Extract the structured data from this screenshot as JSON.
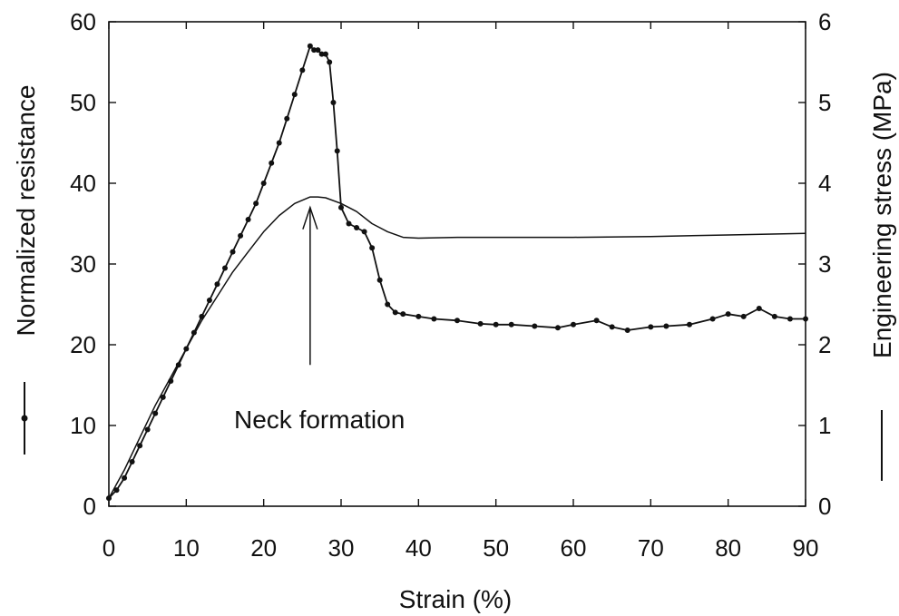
{
  "chart_data": {
    "type": "line",
    "xlabel": "Strain (%)",
    "ylabel_left": "Normalized resistance",
    "ylabel_right": "Engineering stress (MPa)",
    "xlim": [
      0,
      90
    ],
    "ylim_left": [
      0,
      60
    ],
    "ylim_right": [
      0,
      6
    ],
    "x_ticks": [
      "0",
      "10",
      "20",
      "30",
      "40",
      "50",
      "60",
      "70",
      "80",
      "90"
    ],
    "y_left_ticks": [
      "0",
      "10",
      "20",
      "30",
      "40",
      "50",
      "60"
    ],
    "y_right_ticks": [
      "0",
      "1",
      "2",
      "3",
      "4",
      "5",
      "6"
    ],
    "grid": false,
    "annotation": {
      "text": "Neck formation",
      "arrow_from": [
        26,
        17.5
      ],
      "arrow_to": [
        26,
        37
      ]
    },
    "series": [
      {
        "axis": "left",
        "style": "line-with-dots",
        "x": [
          0,
          1,
          2,
          3,
          4,
          5,
          6,
          7,
          8,
          9,
          10,
          11,
          12,
          13,
          14,
          15,
          16,
          17,
          18,
          19,
          20,
          21,
          22,
          23,
          24,
          25,
          26,
          26.5,
          27,
          27.5,
          28,
          28.5,
          29,
          29.5,
          30,
          31,
          32,
          33,
          34,
          35,
          36,
          37,
          38,
          40,
          42,
          45,
          48,
          50,
          52,
          55,
          58,
          60,
          63,
          65,
          67,
          70,
          72,
          75,
          78,
          80,
          82,
          84,
          86,
          88,
          90
        ],
        "y": [
          1,
          2,
          3.5,
          5.5,
          7.5,
          9.5,
          11.5,
          13.5,
          15.5,
          17.5,
          19.5,
          21.5,
          23.5,
          25.5,
          27.5,
          29.5,
          31.5,
          33.5,
          35.5,
          37.5,
          40,
          42.5,
          45,
          48,
          51,
          54,
          57,
          56.5,
          56.5,
          56,
          56,
          55,
          50,
          44,
          37,
          35,
          34.5,
          34,
          32,
          28,
          25,
          24,
          23.8,
          23.5,
          23.2,
          23,
          22.6,
          22.5,
          22.5,
          22.3,
          22.1,
          22.5,
          23,
          22.2,
          21.8,
          22.2,
          22.3,
          22.5,
          23.2,
          23.8,
          23.5,
          24.5,
          23.5,
          23.2,
          23.2
        ]
      },
      {
        "axis": "right",
        "style": "line",
        "x": [
          0,
          2,
          4,
          6,
          8,
          10,
          12,
          14,
          16,
          18,
          20,
          22,
          24,
          26,
          27,
          28,
          30,
          32,
          34,
          36,
          38,
          40,
          45,
          50,
          60,
          70,
          80,
          90
        ],
        "y": [
          0.1,
          0.45,
          0.85,
          1.25,
          1.6,
          1.95,
          2.3,
          2.6,
          2.9,
          3.15,
          3.4,
          3.6,
          3.75,
          3.83,
          3.83,
          3.82,
          3.75,
          3.65,
          3.5,
          3.4,
          3.33,
          3.32,
          3.33,
          3.33,
          3.33,
          3.34,
          3.36,
          3.38
        ]
      }
    ]
  }
}
